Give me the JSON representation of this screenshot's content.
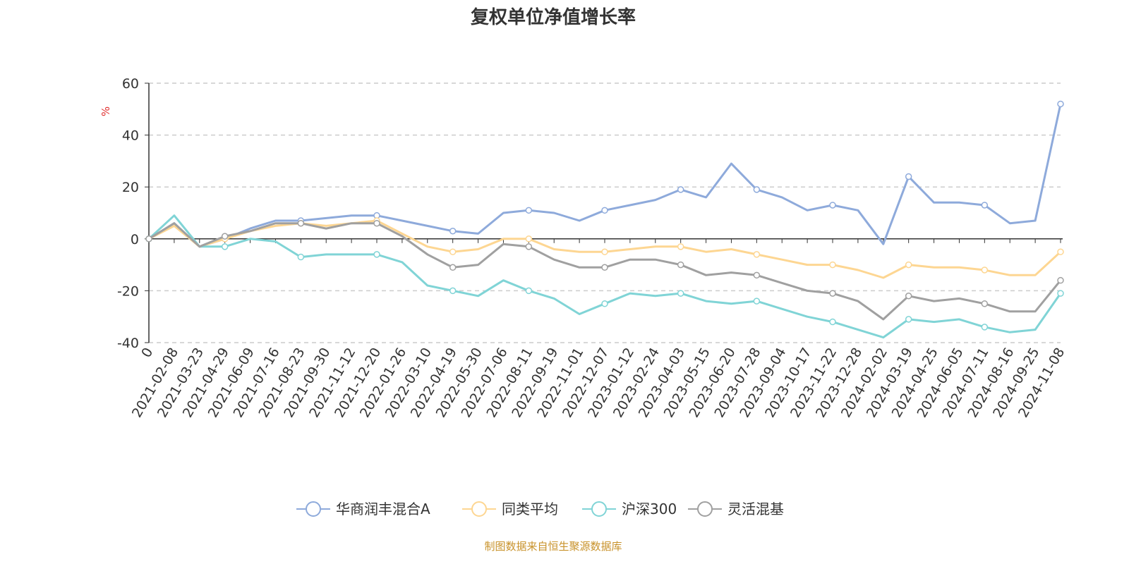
{
  "chart_data": {
    "type": "line",
    "title": "复权单位净值增长率",
    "ylabel": "%",
    "ylim": [
      -40,
      60
    ],
    "yticks": [
      -40,
      -20,
      0,
      20,
      40,
      60
    ],
    "grid": true,
    "legend_placement": "bottom",
    "source": "制图数据来自恒生聚源数据库",
    "categories": [
      "0",
      "2021-02-08",
      "2021-03-23",
      "2021-04-29",
      "2021-06-09",
      "2021-07-16",
      "2021-08-23",
      "2021-09-30",
      "2021-11-12",
      "2021-12-20",
      "2022-01-26",
      "2022-03-10",
      "2022-04-19",
      "2022-05-30",
      "2022-07-06",
      "2022-08-11",
      "2022-09-19",
      "2022-11-01",
      "2022-12-07",
      "2023-01-12",
      "2023-02-24",
      "2023-04-03",
      "2023-05-15",
      "2023-06-20",
      "2023-07-28",
      "2023-09-04",
      "2023-10-17",
      "2023-11-22",
      "2023-12-28",
      "2024-02-02",
      "2024-03-19",
      "2024-04-25",
      "2024-06-05",
      "2024-07-11",
      "2024-08-16",
      "2024-09-25",
      "2024-11-08"
    ],
    "series": [
      {
        "name": "华商润丰混合A",
        "color": "#8eaadb",
        "values": [
          0,
          6,
          -3,
          0,
          4,
          7,
          7,
          8,
          9,
          9,
          7,
          5,
          3,
          2,
          10,
          11,
          10,
          7,
          11,
          13,
          15,
          19,
          16,
          29,
          19,
          16,
          11,
          13,
          11,
          -2,
          24,
          14,
          14,
          13,
          6,
          7,
          52
        ]
      },
      {
        "name": "同类平均",
        "color": "#fdd692",
        "values": [
          0,
          5,
          -3,
          0,
          3,
          5,
          6,
          5,
          6,
          7,
          2,
          -3,
          -5,
          -4,
          0,
          0,
          -4,
          -5,
          -5,
          -4,
          -3,
          -3,
          -5,
          -4,
          -6,
          -8,
          -10,
          -10,
          -12,
          -15,
          -10,
          -11,
          -11,
          -12,
          -14,
          -14,
          -5
        ]
      },
      {
        "name": "沪深300",
        "color": "#80d4d6",
        "values": [
          0,
          9,
          -3,
          -3,
          0,
          -1,
          -7,
          -6,
          -6,
          -6,
          -9,
          -18,
          -20,
          -22,
          -16,
          -20,
          -23,
          -29,
          -25,
          -21,
          -22,
          -21,
          -24,
          -25,
          -24,
          -27,
          -30,
          -32,
          -35,
          -38,
          -31,
          -32,
          -31,
          -34,
          -36,
          -35,
          -21
        ]
      },
      {
        "name": "灵活混基",
        "color": "#a0a0a0",
        "values": [
          0,
          6,
          -3,
          1,
          3,
          6,
          6,
          4,
          6,
          6,
          1,
          -6,
          -11,
          -10,
          -2,
          -3,
          -8,
          -11,
          -11,
          -8,
          -8,
          -10,
          -14,
          -13,
          -14,
          -17,
          -20,
          -21,
          -24,
          -31,
          -22,
          -24,
          -23,
          -25,
          -28,
          -28,
          -16
        ]
      }
    ]
  }
}
